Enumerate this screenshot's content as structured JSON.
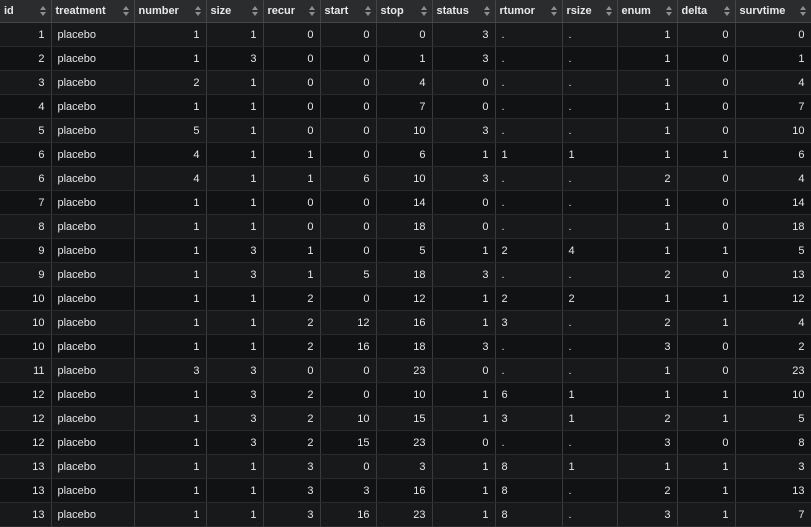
{
  "columns": [
    {
      "key": "id",
      "label": "id",
      "align": "num"
    },
    {
      "key": "treatment",
      "label": "treatment",
      "align": "txt"
    },
    {
      "key": "number",
      "label": "number",
      "align": "num"
    },
    {
      "key": "size",
      "label": "size",
      "align": "num"
    },
    {
      "key": "recur",
      "label": "recur",
      "align": "num"
    },
    {
      "key": "start",
      "label": "start",
      "align": "num"
    },
    {
      "key": "stop",
      "label": "stop",
      "align": "num"
    },
    {
      "key": "status",
      "label": "status",
      "align": "num"
    },
    {
      "key": "rtumor",
      "label": "rtumor",
      "align": "txt"
    },
    {
      "key": "rsize",
      "label": "rsize",
      "align": "txt"
    },
    {
      "key": "enum",
      "label": "enum",
      "align": "num"
    },
    {
      "key": "delta",
      "label": "delta",
      "align": "num"
    },
    {
      "key": "survtime",
      "label": "survtime",
      "align": "num"
    }
  ],
  "rows": [
    [
      "1",
      "placebo",
      "1",
      "1",
      "0",
      "0",
      "0",
      "3",
      ".",
      ".",
      "1",
      "0",
      "0"
    ],
    [
      "2",
      "placebo",
      "1",
      "3",
      "0",
      "0",
      "1",
      "3",
      ".",
      ".",
      "1",
      "0",
      "1"
    ],
    [
      "3",
      "placebo",
      "2",
      "1",
      "0",
      "0",
      "4",
      "0",
      ".",
      ".",
      "1",
      "0",
      "4"
    ],
    [
      "4",
      "placebo",
      "1",
      "1",
      "0",
      "0",
      "7",
      "0",
      ".",
      ".",
      "1",
      "0",
      "7"
    ],
    [
      "5",
      "placebo",
      "5",
      "1",
      "0",
      "0",
      "10",
      "3",
      ".",
      ".",
      "1",
      "0",
      "10"
    ],
    [
      "6",
      "placebo",
      "4",
      "1",
      "1",
      "0",
      "6",
      "1",
      "1",
      "1",
      "1",
      "1",
      "6"
    ],
    [
      "6",
      "placebo",
      "4",
      "1",
      "1",
      "6",
      "10",
      "3",
      ".",
      ".",
      "2",
      "0",
      "4"
    ],
    [
      "7",
      "placebo",
      "1",
      "1",
      "0",
      "0",
      "14",
      "0",
      ".",
      ".",
      "1",
      "0",
      "14"
    ],
    [
      "8",
      "placebo",
      "1",
      "1",
      "0",
      "0",
      "18",
      "0",
      ".",
      ".",
      "1",
      "0",
      "18"
    ],
    [
      "9",
      "placebo",
      "1",
      "3",
      "1",
      "0",
      "5",
      "1",
      "2",
      "4",
      "1",
      "1",
      "5"
    ],
    [
      "9",
      "placebo",
      "1",
      "3",
      "1",
      "5",
      "18",
      "3",
      ".",
      ".",
      "2",
      "0",
      "13"
    ],
    [
      "10",
      "placebo",
      "1",
      "1",
      "2",
      "0",
      "12",
      "1",
      "2",
      "2",
      "1",
      "1",
      "12"
    ],
    [
      "10",
      "placebo",
      "1",
      "1",
      "2",
      "12",
      "16",
      "1",
      "3",
      ".",
      "2",
      "1",
      "4"
    ],
    [
      "10",
      "placebo",
      "1",
      "1",
      "2",
      "16",
      "18",
      "3",
      ".",
      ".",
      "3",
      "0",
      "2"
    ],
    [
      "11",
      "placebo",
      "3",
      "3",
      "0",
      "0",
      "23",
      "0",
      ".",
      ".",
      "1",
      "0",
      "23"
    ],
    [
      "12",
      "placebo",
      "1",
      "3",
      "2",
      "0",
      "10",
      "1",
      "6",
      "1",
      "1",
      "1",
      "10"
    ],
    [
      "12",
      "placebo",
      "1",
      "3",
      "2",
      "10",
      "15",
      "1",
      "3",
      "1",
      "2",
      "1",
      "5"
    ],
    [
      "12",
      "placebo",
      "1",
      "3",
      "2",
      "15",
      "23",
      "0",
      ".",
      ".",
      "3",
      "0",
      "8"
    ],
    [
      "13",
      "placebo",
      "1",
      "1",
      "3",
      "0",
      "3",
      "1",
      "8",
      "1",
      "1",
      "1",
      "3"
    ],
    [
      "13",
      "placebo",
      "1",
      "1",
      "3",
      "3",
      "16",
      "1",
      "8",
      ".",
      "2",
      "1",
      "13"
    ],
    [
      "13",
      "placebo",
      "1",
      "1",
      "3",
      "16",
      "23",
      "1",
      "8",
      ".",
      "3",
      "1",
      "7"
    ]
  ]
}
